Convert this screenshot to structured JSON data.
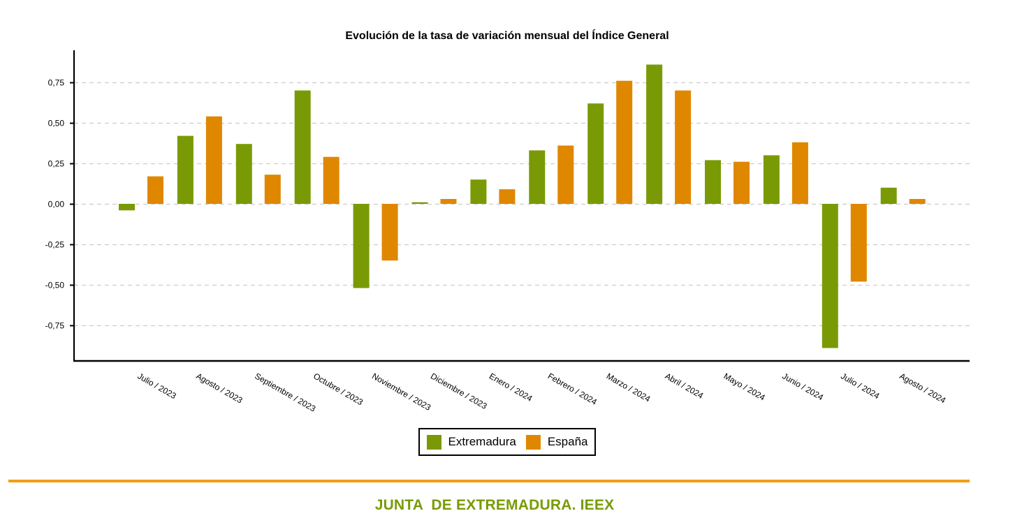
{
  "chart_data": {
    "type": "bar",
    "title": "Evolución de la tasa de variación mensual del Índice General",
    "xlabel": "",
    "ylabel": "",
    "ylim": [
      -0.97,
      0.94
    ],
    "yticks": [
      0.75,
      0.5,
      0.25,
      0.0,
      -0.25,
      -0.5,
      -0.75
    ],
    "ytick_labels": [
      "0,75",
      "0,50",
      "0,25",
      "0,00",
      "-0,25",
      "-0,50",
      "-0,75"
    ],
    "grid": true,
    "legend_position": "bottom-center",
    "categories": [
      "Julio / 2023",
      "Agosto / 2023",
      "Septiembre / 2023",
      "Octubre / 2023",
      "Noviembre / 2023",
      "Diciembre / 2023",
      "Enero / 2024",
      "Febrero / 2024",
      "Marzo / 2024",
      "Abril / 2024",
      "Mayo / 2024",
      "Junio / 2024",
      "Julio / 2024",
      "Agosto / 2024"
    ],
    "series": [
      {
        "name": "Extremadura",
        "color": "#799a05",
        "values": [
          -0.04,
          0.42,
          0.37,
          0.7,
          -0.52,
          0.01,
          0.15,
          0.33,
          0.62,
          0.86,
          0.27,
          0.3,
          -0.89,
          0.1
        ]
      },
      {
        "name": "España",
        "color": "#e08700",
        "values": [
          0.17,
          0.54,
          0.18,
          0.29,
          -0.35,
          0.03,
          0.09,
          0.36,
          0.76,
          0.7,
          0.26,
          0.38,
          -0.48,
          0.03
        ]
      }
    ]
  },
  "legend": {
    "items": [
      {
        "label": "Extremadura",
        "color": "#799a05"
      },
      {
        "label": "España",
        "color": "#e08700"
      }
    ]
  },
  "footer": {
    "text": "JUNTA  DE EXTREMADURA. IEEX",
    "rule_color": "#f39c12",
    "text_color": "#799a05"
  }
}
